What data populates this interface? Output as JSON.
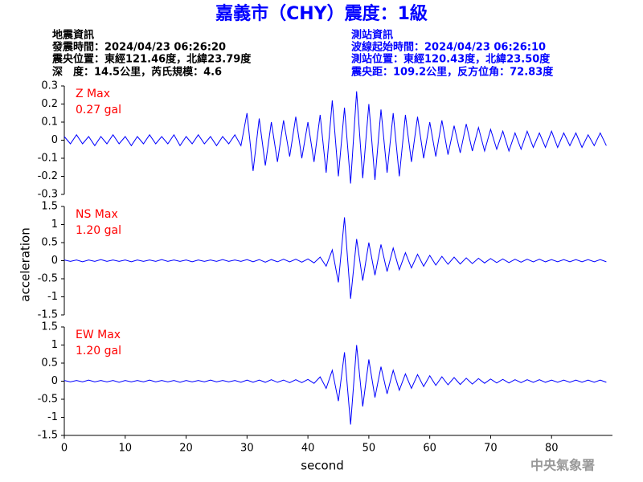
{
  "header": {
    "title": "嘉義市（CHY）震度：1級",
    "left": [
      "地震資訊",
      "發震時間：2024/04/23 06:26:20",
      "震央位置：東經121.46度，北緯23.79度",
      "深　度：14.5公里，芮氏規模：4.6"
    ],
    "right": [
      "測站資訊",
      "波線起始時間：2024/04/23 06:26:10",
      "測站位置：東經120.43度，北緯23.50度",
      "震央距：109.2公里，反方位角：72.83度"
    ],
    "footer": "中央氣象署"
  },
  "chart_data": [
    {
      "type": "line",
      "annotations": [
        "Z Max",
        "0.27 gal"
      ],
      "annotation_color": "#ff0000",
      "x": [
        0,
        1,
        2,
        3,
        4,
        5,
        6,
        7,
        8,
        9,
        10,
        11,
        12,
        13,
        14,
        15,
        16,
        17,
        18,
        19,
        20,
        21,
        22,
        23,
        24,
        25,
        26,
        27,
        28,
        29,
        30,
        31,
        32,
        33,
        34,
        35,
        36,
        37,
        38,
        39,
        40,
        41,
        42,
        43,
        44,
        45,
        46,
        47,
        48,
        49,
        50,
        51,
        52,
        53,
        54,
        55,
        56,
        57,
        58,
        59,
        60,
        61,
        62,
        63,
        64,
        65,
        66,
        67,
        68,
        69,
        70,
        71,
        72,
        73,
        74,
        75,
        76,
        77,
        78,
        79,
        80,
        81,
        82,
        83,
        84,
        85,
        86,
        87,
        88,
        89
      ],
      "series": [
        {
          "color": "#0000ff",
          "values": [
            0.02,
            -0.02,
            0.03,
            -0.02,
            0.02,
            -0.03,
            0.02,
            -0.02,
            0.03,
            -0.02,
            0.02,
            -0.03,
            0.02,
            -0.02,
            0.03,
            -0.02,
            0.02,
            -0.02,
            0.03,
            -0.03,
            0.02,
            -0.02,
            0.03,
            -0.02,
            0.02,
            -0.03,
            0.02,
            -0.02,
            0.03,
            -0.03,
            0.15,
            -0.17,
            0.12,
            -0.14,
            0.1,
            -0.12,
            0.11,
            -0.09,
            0.13,
            -0.1,
            0.1,
            -0.12,
            0.14,
            -0.18,
            0.22,
            -0.2,
            0.18,
            -0.24,
            0.27,
            -0.21,
            0.2,
            -0.22,
            0.17,
            -0.18,
            0.15,
            -0.2,
            0.14,
            -0.12,
            0.13,
            -0.1,
            0.1,
            -0.09,
            0.11,
            -0.08,
            0.08,
            -0.07,
            0.09,
            -0.06,
            0.07,
            -0.06,
            0.06,
            -0.05,
            0.05,
            -0.06,
            0.04,
            -0.05,
            0.05,
            -0.04,
            0.04,
            -0.04,
            0.05,
            -0.04,
            0.04,
            -0.03,
            0.04,
            -0.04,
            0.03,
            -0.03,
            0.04,
            -0.03
          ]
        }
      ],
      "xlim": [
        0,
        90
      ],
      "ylim": [
        -0.3,
        0.3
      ],
      "yticks": [
        0.3,
        0.2,
        0.1,
        0,
        -0.1,
        -0.2,
        -0.3
      ]
    },
    {
      "type": "line",
      "annotations": [
        "NS Max",
        "1.20 gal"
      ],
      "annotation_color": "#ff0000",
      "ylabel": "acceleration",
      "x": [
        0,
        1,
        2,
        3,
        4,
        5,
        6,
        7,
        8,
        9,
        10,
        11,
        12,
        13,
        14,
        15,
        16,
        17,
        18,
        19,
        20,
        21,
        22,
        23,
        24,
        25,
        26,
        27,
        28,
        29,
        30,
        31,
        32,
        33,
        34,
        35,
        36,
        37,
        38,
        39,
        40,
        41,
        42,
        43,
        44,
        45,
        46,
        47,
        48,
        49,
        50,
        51,
        52,
        53,
        54,
        55,
        56,
        57,
        58,
        59,
        60,
        61,
        62,
        63,
        64,
        65,
        66,
        67,
        68,
        69,
        70,
        71,
        72,
        73,
        74,
        75,
        76,
        77,
        78,
        79,
        80,
        81,
        82,
        83,
        84,
        85,
        86,
        87,
        88,
        89
      ],
      "series": [
        {
          "color": "#0000ff",
          "values": [
            0.02,
            -0.02,
            0.02,
            -0.03,
            0.02,
            -0.02,
            0.03,
            -0.02,
            0.02,
            -0.02,
            0.02,
            -0.03,
            0.02,
            -0.02,
            0.02,
            -0.02,
            0.03,
            -0.02,
            0.02,
            -0.02,
            0.02,
            -0.03,
            0.02,
            -0.02,
            0.02,
            -0.02,
            0.03,
            -0.02,
            0.02,
            -0.02,
            0.03,
            -0.03,
            0.03,
            -0.04,
            0.03,
            -0.03,
            0.04,
            -0.03,
            0.04,
            -0.04,
            0.05,
            -0.06,
            0.1,
            -0.15,
            0.3,
            -0.6,
            1.2,
            -1.05,
            0.6,
            -0.55,
            0.5,
            -0.4,
            0.45,
            -0.3,
            0.35,
            -0.25,
            0.22,
            -0.2,
            0.18,
            -0.15,
            0.15,
            -0.12,
            0.12,
            -0.1,
            0.1,
            -0.09,
            0.08,
            -0.08,
            0.07,
            -0.06,
            0.06,
            -0.05,
            0.05,
            -0.05,
            0.04,
            -0.04,
            0.04,
            -0.03,
            0.04,
            -0.03,
            0.03,
            -0.03,
            0.03,
            -0.03,
            0.03,
            -0.03,
            0.03,
            -0.03,
            0.03,
            -0.03
          ]
        }
      ],
      "xlim": [
        0,
        90
      ],
      "ylim": [
        -1.5,
        1.5
      ],
      "yticks": [
        1.5,
        1,
        0.5,
        0,
        -0.5,
        -1,
        -1.5
      ]
    },
    {
      "type": "line",
      "annotations": [
        "EW Max",
        "1.20 gal"
      ],
      "annotation_color": "#ff0000",
      "xlabel": "second",
      "x": [
        0,
        1,
        2,
        3,
        4,
        5,
        6,
        7,
        8,
        9,
        10,
        11,
        12,
        13,
        14,
        15,
        16,
        17,
        18,
        19,
        20,
        21,
        22,
        23,
        24,
        25,
        26,
        27,
        28,
        29,
        30,
        31,
        32,
        33,
        34,
        35,
        36,
        37,
        38,
        39,
        40,
        41,
        42,
        43,
        44,
        45,
        46,
        47,
        48,
        49,
        50,
        51,
        52,
        53,
        54,
        55,
        56,
        57,
        58,
        59,
        60,
        61,
        62,
        63,
        64,
        65,
        66,
        67,
        68,
        69,
        70,
        71,
        72,
        73,
        74,
        75,
        76,
        77,
        78,
        79,
        80,
        81,
        82,
        83,
        84,
        85,
        86,
        87,
        88,
        89
      ],
      "series": [
        {
          "color": "#0000ff",
          "values": [
            0.02,
            -0.02,
            0.02,
            -0.02,
            0.03,
            -0.02,
            0.02,
            -0.02,
            0.02,
            -0.03,
            0.02,
            -0.02,
            0.02,
            -0.02,
            0.03,
            -0.02,
            0.02,
            -0.02,
            0.02,
            -0.03,
            0.02,
            -0.02,
            0.02,
            -0.02,
            0.03,
            -0.02,
            0.02,
            -0.02,
            0.02,
            -0.03,
            0.03,
            -0.03,
            0.03,
            -0.03,
            0.04,
            -0.03,
            0.03,
            -0.04,
            0.04,
            -0.04,
            0.05,
            -0.06,
            0.12,
            -0.2,
            0.3,
            -0.55,
            0.8,
            -1.2,
            1.0,
            -0.7,
            0.6,
            -0.45,
            0.4,
            -0.35,
            0.3,
            -0.25,
            0.2,
            -0.2,
            0.18,
            -0.15,
            0.15,
            -0.12,
            0.12,
            -0.1,
            0.1,
            -0.09,
            0.08,
            -0.08,
            0.07,
            -0.06,
            0.06,
            -0.05,
            0.05,
            -0.05,
            0.04,
            -0.04,
            0.04,
            -0.03,
            0.04,
            -0.03,
            0.03,
            -0.03,
            0.03,
            -0.03,
            0.03,
            -0.03,
            0.03,
            -0.03,
            0.03,
            -0.03
          ]
        }
      ],
      "xlim": [
        0,
        90
      ],
      "ylim": [
        -1.5,
        1.5
      ],
      "yticks": [
        1.5,
        1,
        0.5,
        0,
        -0.5,
        -1,
        -1.5
      ],
      "xticks": [
        0,
        10,
        20,
        30,
        40,
        50,
        60,
        70,
        80
      ]
    }
  ]
}
